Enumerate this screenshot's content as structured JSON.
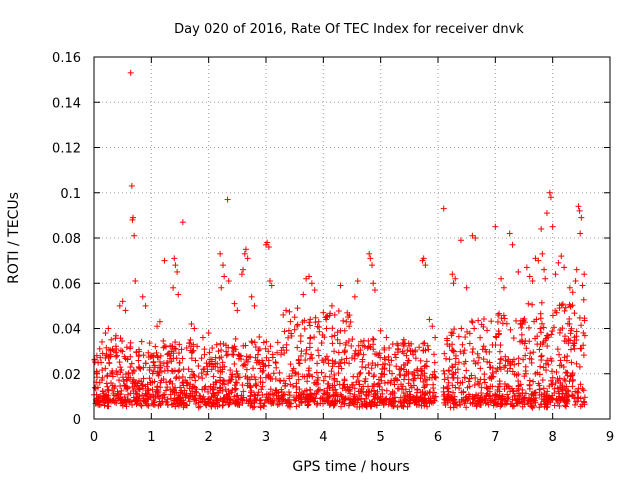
{
  "chart_data": {
    "type": "scatter",
    "title": "Day 020 of 2016, Rate Of TEC Index for receiver dnvk",
    "xlabel": "GPS time / hours",
    "ylabel": "ROTI / TECUs",
    "xlim": [
      0,
      9
    ],
    "ylim": [
      0,
      0.16
    ],
    "xticks": [
      "0",
      "1",
      "2",
      "3",
      "4",
      "5",
      "6",
      "7",
      "8",
      "9"
    ],
    "yticks": [
      "0",
      "0.02",
      "0.04",
      "0.06",
      "0.08",
      "0.1",
      "0.12",
      "0.14",
      "0.16"
    ],
    "grid": true,
    "marker": "+",
    "color": "#ff0000",
    "series": [
      {
        "name": "ROTI",
        "points": [
          [
            0.64,
            0.153
          ],
          [
            0.66,
            0.103
          ],
          [
            0.68,
            0.089
          ],
          [
            0.67,
            0.088
          ],
          [
            0.7,
            0.081
          ],
          [
            0.72,
            0.061
          ],
          [
            1.55,
            0.087
          ],
          [
            2.33,
            0.097
          ],
          [
            6.1,
            0.093
          ],
          [
            7.95,
            0.1
          ],
          [
            7.97,
            0.098
          ],
          [
            7.9,
            0.091
          ],
          [
            8.45,
            0.094
          ],
          [
            8.47,
            0.092
          ],
          [
            8.5,
            0.089
          ],
          [
            8.48,
            0.082
          ],
          [
            7.8,
            0.084
          ],
          [
            7.25,
            0.082
          ],
          [
            6.4,
            0.079
          ],
          [
            6.6,
            0.081
          ],
          [
            7.0,
            0.085
          ],
          [
            7.3,
            0.077
          ],
          [
            8.0,
            0.085
          ],
          [
            1.23,
            0.07
          ],
          [
            1.4,
            0.071
          ],
          [
            1.42,
            0.068
          ],
          [
            1.45,
            0.065
          ],
          [
            1.38,
            0.058
          ],
          [
            1.47,
            0.055
          ],
          [
            2.2,
            0.073
          ],
          [
            2.25,
            0.068
          ],
          [
            2.27,
            0.063
          ],
          [
            2.35,
            0.061
          ],
          [
            2.22,
            0.058
          ],
          [
            2.6,
            0.066
          ],
          [
            2.63,
            0.073
          ],
          [
            2.65,
            0.075
          ],
          [
            2.68,
            0.071
          ],
          [
            2.58,
            0.064
          ],
          [
            3.0,
            0.077
          ],
          [
            3.02,
            0.078
          ],
          [
            3.05,
            0.076
          ],
          [
            3.07,
            0.061
          ],
          [
            3.1,
            0.059
          ],
          [
            3.7,
            0.062
          ],
          [
            3.75,
            0.063
          ],
          [
            3.8,
            0.06
          ],
          [
            3.85,
            0.057
          ],
          [
            3.65,
            0.055
          ],
          [
            4.3,
            0.059
          ],
          [
            4.6,
            0.061
          ],
          [
            4.55,
            0.054
          ],
          [
            4.8,
            0.073
          ],
          [
            4.82,
            0.071
          ],
          [
            4.85,
            0.068
          ],
          [
            4.87,
            0.06
          ],
          [
            4.9,
            0.057
          ],
          [
            5.75,
            0.071
          ],
          [
            5.73,
            0.07
          ],
          [
            5.78,
            0.068
          ],
          [
            6.25,
            0.064
          ],
          [
            6.3,
            0.062
          ],
          [
            6.27,
            0.06
          ],
          [
            6.5,
            0.058
          ],
          [
            6.65,
            0.08
          ],
          [
            7.1,
            0.062
          ],
          [
            7.15,
            0.058
          ],
          [
            7.4,
            0.065
          ],
          [
            7.55,
            0.067
          ],
          [
            7.6,
            0.063
          ],
          [
            7.65,
            0.061
          ],
          [
            7.7,
            0.071
          ],
          [
            7.75,
            0.07
          ],
          [
            7.82,
            0.073
          ],
          [
            7.85,
            0.066
          ],
          [
            7.87,
            0.062
          ],
          [
            8.05,
            0.064
          ],
          [
            8.1,
            0.069
          ],
          [
            8.15,
            0.072
          ],
          [
            8.2,
            0.067
          ],
          [
            8.3,
            0.058
          ],
          [
            8.35,
            0.056
          ],
          [
            8.4,
            0.061
          ],
          [
            8.42,
            0.066
          ],
          [
            8.55,
            0.064
          ],
          [
            8.52,
            0.059
          ],
          [
            0.45,
            0.05
          ],
          [
            0.5,
            0.052
          ],
          [
            0.55,
            0.048
          ],
          [
            0.2,
            0.038
          ],
          [
            0.25,
            0.04
          ],
          [
            0.3,
            0.035
          ],
          [
            0.1,
            0.031
          ],
          [
            0.15,
            0.029
          ],
          [
            0.05,
            0.028
          ],
          [
            0.85,
            0.054
          ],
          [
            0.9,
            0.05
          ],
          [
            1.1,
            0.041
          ],
          [
            1.15,
            0.043
          ],
          [
            1.7,
            0.042
          ],
          [
            1.75,
            0.04
          ],
          [
            1.9,
            0.036
          ],
          [
            2.0,
            0.038
          ],
          [
            2.45,
            0.051
          ],
          [
            2.5,
            0.048
          ],
          [
            2.75,
            0.054
          ],
          [
            2.8,
            0.05
          ],
          [
            3.3,
            0.046
          ],
          [
            3.35,
            0.048
          ],
          [
            3.5,
            0.045
          ],
          [
            3.55,
            0.049
          ],
          [
            4.0,
            0.047
          ],
          [
            4.05,
            0.044
          ],
          [
            4.15,
            0.05
          ],
          [
            4.2,
            0.046
          ],
          [
            4.4,
            0.043
          ],
          [
            4.45,
            0.041
          ],
          [
            5.0,
            0.039
          ],
          [
            5.1,
            0.036
          ],
          [
            5.3,
            0.031
          ],
          [
            5.45,
            0.028
          ],
          [
            5.55,
            0.03
          ],
          [
            5.85,
            0.044
          ],
          [
            5.9,
            0.041
          ],
          [
            5.95,
            0.036
          ]
        ]
      }
    ]
  }
}
